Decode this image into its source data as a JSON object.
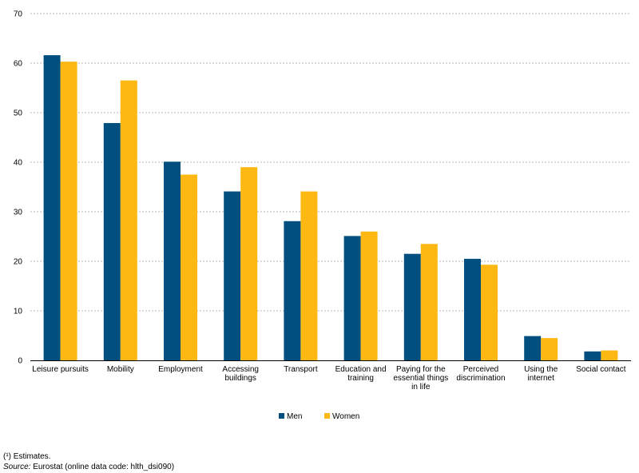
{
  "chart_data": {
    "type": "bar",
    "categories": [
      [
        "Leisure pursuits"
      ],
      [
        "Mobility"
      ],
      [
        "Employment"
      ],
      [
        "Accessing",
        "buildings"
      ],
      [
        "Transport"
      ],
      [
        "Education and",
        "training"
      ],
      [
        "Paying for the",
        "essential things",
        "in life"
      ],
      [
        "Perceived",
        "discrimination"
      ],
      [
        "Using the",
        "internet"
      ],
      [
        "Social contact"
      ]
    ],
    "series": [
      {
        "name": "Men",
        "color": "#004f7f",
        "values": [
          61.6,
          47.9,
          40.1,
          34.1,
          28.1,
          25.1,
          21.5,
          20.5,
          4.9,
          1.8
        ]
      },
      {
        "name": "Women",
        "color": "#fdb813",
        "values": [
          60.3,
          56.5,
          37.5,
          39.0,
          34.1,
          26.0,
          23.5,
          19.3,
          4.5,
          2.0
        ]
      }
    ],
    "ylim": [
      0,
      70
    ],
    "yticks": [
      0,
      10,
      20,
      30,
      40,
      50,
      60,
      70
    ],
    "grid": true,
    "legend_position": "bottom-center"
  },
  "footnotes": {
    "estimates": "(¹) Estimates.",
    "source_label": "Source:",
    "source_text": " Eurostat (online data code: hlth_dsi090)"
  }
}
